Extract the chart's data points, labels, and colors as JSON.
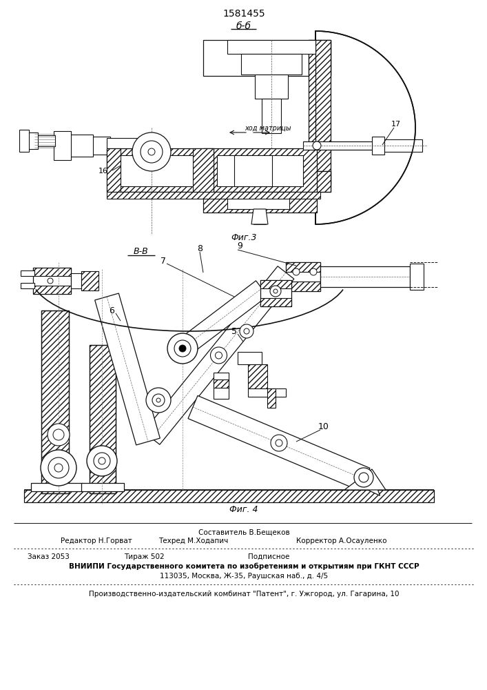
{
  "patent_number": "1581455",
  "fig3_label": "б-б",
  "fig3_caption": "Фиг.3",
  "fig4_label": "В-В",
  "fig4_caption": "Фиг. 4",
  "label_16": "16",
  "label_17": "17",
  "label_5": "5",
  "label_6": "6",
  "label_7": "7",
  "label_8": "8",
  "label_9": "9",
  "label_10": "10",
  "arrow_text": "ход матрицы",
  "staff_line1": "Составитель В.Бещеков",
  "staff_col1": "Редактор Н.Горват",
  "staff_col2": "Техред М.Ходапич",
  "staff_col3": "Корректор А.Осауленко",
  "order_col1": "Заказ 2053",
  "order_col2": "Тираж 502",
  "order_col3": "Подписное",
  "vniipи": "ВНИИПИ Государственного комитета по изобретениям и открытиям при ГКНТ СССР",
  "address": "113035, Москва, Ж-35, Раушская наб., д. 4/5",
  "factory": "Производственно-издательский комбинат \"Патент\", г. Ужгород, ул. Гагарина, 10",
  "bg_color": "#ffffff"
}
